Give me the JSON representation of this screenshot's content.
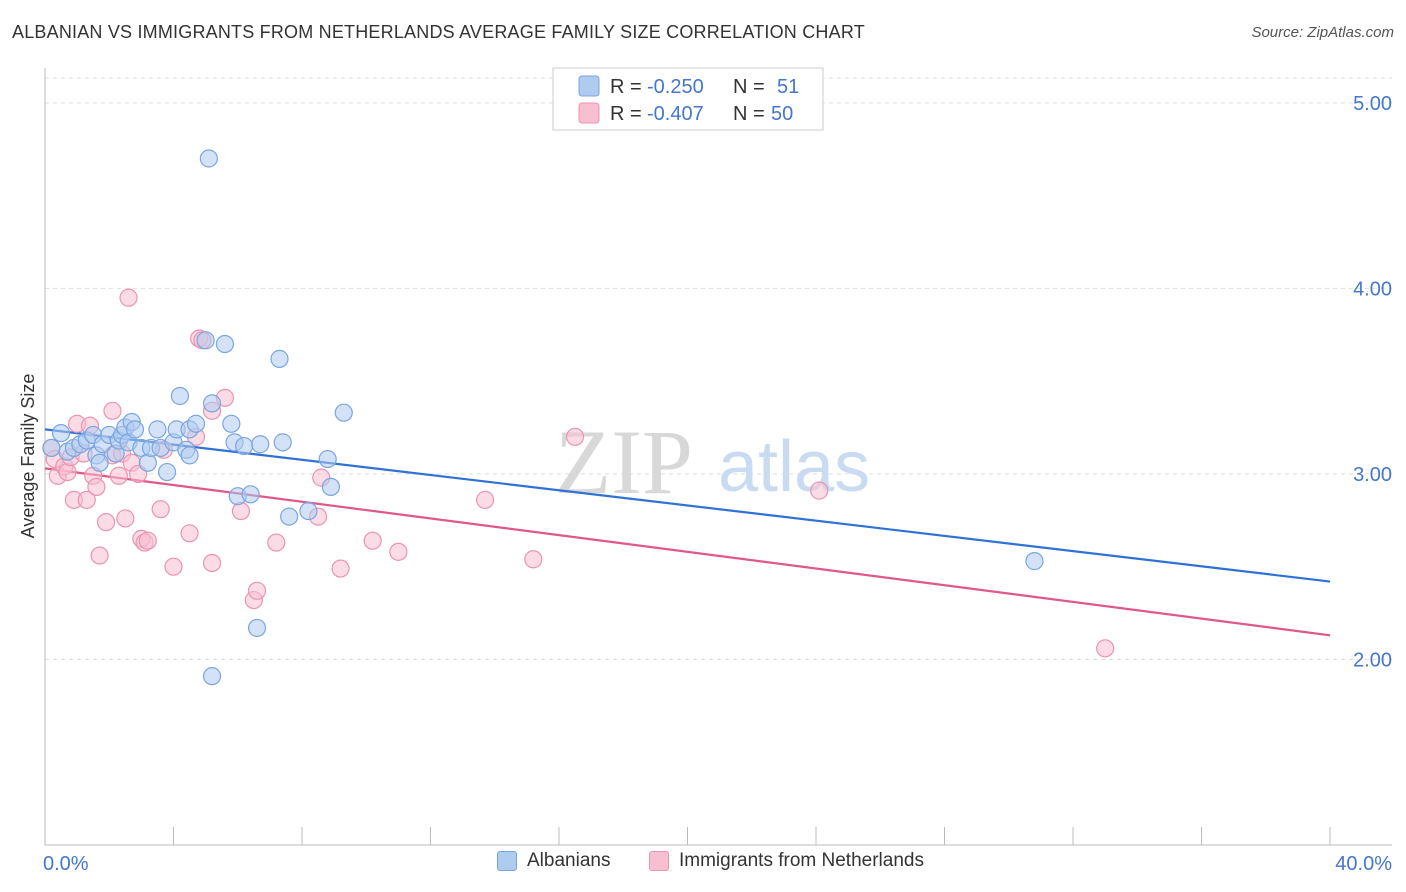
{
  "title": "ALBANIAN VS IMMIGRANTS FROM NETHERLANDS AVERAGE FAMILY SIZE CORRELATION CHART",
  "source": "Source: ZipAtlas.com",
  "watermark": {
    "zip": "ZIP",
    "atlas": "atlas"
  },
  "legend": {
    "row1": {
      "r_label": "R =",
      "r_value": "-0.250",
      "n_label": "N =",
      "n_value": "51"
    },
    "row2": {
      "r_label": "R =",
      "r_value": "-0.407",
      "n_label": "N =",
      "n_value": "50"
    }
  },
  "bottom_legend": {
    "albanians": "Albanians",
    "netherlands": "Immigrants from Netherlands"
  },
  "colors": {
    "blue_fill": "#aecbf0",
    "blue_stroke": "#7aa6df",
    "blue_line": "#2f72d6",
    "pink_fill": "#f8bfd1",
    "pink_stroke": "#ec93b1",
    "pink_line": "#e0588a",
    "tick_label": "#4477cc",
    "grid": "#dddddd"
  },
  "chart_data": {
    "type": "scatter",
    "title": "ALBANIAN VS IMMIGRANTS FROM NETHERLANDS AVERAGE FAMILY SIZE CORRELATION CHART",
    "xlabel": "",
    "ylabel": "Average Family Size",
    "xlim": [
      0,
      40
    ],
    "ylim": [
      1.0,
      5.15
    ],
    "x_tick_labels": [
      "0.0%",
      "40.0%"
    ],
    "y_ticks": [
      2.0,
      3.0,
      4.0,
      5.0
    ],
    "y_tick_labels": [
      "2.00",
      "3.00",
      "4.00",
      "5.00"
    ],
    "grid": true,
    "series": [
      {
        "name": "Albanians",
        "r": -0.25,
        "n": 51,
        "trend": {
          "x": [
            0,
            40
          ],
          "y": [
            3.24,
            2.42
          ]
        },
        "points": [
          [
            0.2,
            3.14
          ],
          [
            0.5,
            3.22
          ],
          [
            0.7,
            3.12
          ],
          [
            0.9,
            3.14
          ],
          [
            1.1,
            3.16
          ],
          [
            1.3,
            3.18
          ],
          [
            1.5,
            3.21
          ],
          [
            1.6,
            3.1
          ],
          [
            1.7,
            3.06
          ],
          [
            1.8,
            3.16
          ],
          [
            2.0,
            3.21
          ],
          [
            2.2,
            3.11
          ],
          [
            2.3,
            3.18
          ],
          [
            2.4,
            3.21
          ],
          [
            2.5,
            3.25
          ],
          [
            2.6,
            3.17
          ],
          [
            2.7,
            3.28
          ],
          [
            2.8,
            3.24
          ],
          [
            3.0,
            3.14
          ],
          [
            3.2,
            3.06
          ],
          [
            3.3,
            3.14
          ],
          [
            3.5,
            3.24
          ],
          [
            3.6,
            3.14
          ],
          [
            3.8,
            3.01
          ],
          [
            4.0,
            3.17
          ],
          [
            4.2,
            3.42
          ],
          [
            4.1,
            3.24
          ],
          [
            4.4,
            3.13
          ],
          [
            4.5,
            3.1
          ],
          [
            4.5,
            3.24
          ],
          [
            4.7,
            3.27
          ],
          [
            5.0,
            3.72
          ],
          [
            5.2,
            3.38
          ],
          [
            5.6,
            3.7
          ],
          [
            5.8,
            3.27
          ],
          [
            5.9,
            3.17
          ],
          [
            6.0,
            2.88
          ],
          [
            6.2,
            3.15
          ],
          [
            6.4,
            2.89
          ],
          [
            6.6,
            2.17
          ],
          [
            6.7,
            3.16
          ],
          [
            7.3,
            3.62
          ],
          [
            7.4,
            3.17
          ],
          [
            7.6,
            2.77
          ],
          [
            8.2,
            2.8
          ],
          [
            8.8,
            3.08
          ],
          [
            8.9,
            2.93
          ],
          [
            9.3,
            3.33
          ],
          [
            5.1,
            4.7
          ],
          [
            5.2,
            1.91
          ],
          [
            30.8,
            2.53
          ]
        ]
      },
      {
        "name": "Immigrants from Netherlands",
        "r": -0.407,
        "n": 50,
        "trend": {
          "x": [
            0,
            40
          ],
          "y": [
            3.03,
            2.13
          ]
        },
        "points": [
          [
            0.2,
            3.14
          ],
          [
            0.3,
            3.08
          ],
          [
            0.4,
            2.99
          ],
          [
            0.6,
            3.04
          ],
          [
            0.7,
            3.01
          ],
          [
            0.8,
            3.09
          ],
          [
            0.9,
            2.86
          ],
          [
            1.0,
            3.27
          ],
          [
            1.2,
            3.11
          ],
          [
            1.3,
            2.86
          ],
          [
            1.4,
            3.26
          ],
          [
            1.5,
            2.99
          ],
          [
            1.6,
            2.93
          ],
          [
            1.7,
            2.56
          ],
          [
            1.9,
            2.74
          ],
          [
            2.1,
            3.1
          ],
          [
            2.1,
            3.34
          ],
          [
            2.3,
            2.99
          ],
          [
            2.4,
            3.11
          ],
          [
            2.5,
            2.76
          ],
          [
            2.6,
            3.95
          ],
          [
            2.7,
            3.06
          ],
          [
            2.9,
            3.0
          ],
          [
            3.0,
            2.65
          ],
          [
            3.1,
            2.63
          ],
          [
            3.2,
            2.64
          ],
          [
            3.6,
            2.81
          ],
          [
            3.7,
            3.13
          ],
          [
            4.0,
            2.5
          ],
          [
            4.5,
            2.68
          ],
          [
            4.7,
            3.2
          ],
          [
            4.8,
            3.73
          ],
          [
            4.9,
            3.72
          ],
          [
            5.2,
            2.52
          ],
          [
            5.2,
            3.34
          ],
          [
            5.6,
            3.41
          ],
          [
            6.1,
            2.8
          ],
          [
            6.5,
            2.32
          ],
          [
            6.6,
            2.37
          ],
          [
            7.2,
            2.63
          ],
          [
            8.5,
            2.77
          ],
          [
            8.6,
            2.98
          ],
          [
            9.2,
            2.49
          ],
          [
            10.2,
            2.64
          ],
          [
            11.0,
            2.58
          ],
          [
            13.7,
            2.86
          ],
          [
            15.2,
            2.54
          ],
          [
            16.5,
            3.2
          ],
          [
            24.1,
            2.91
          ],
          [
            33.0,
            2.06
          ]
        ]
      }
    ]
  }
}
